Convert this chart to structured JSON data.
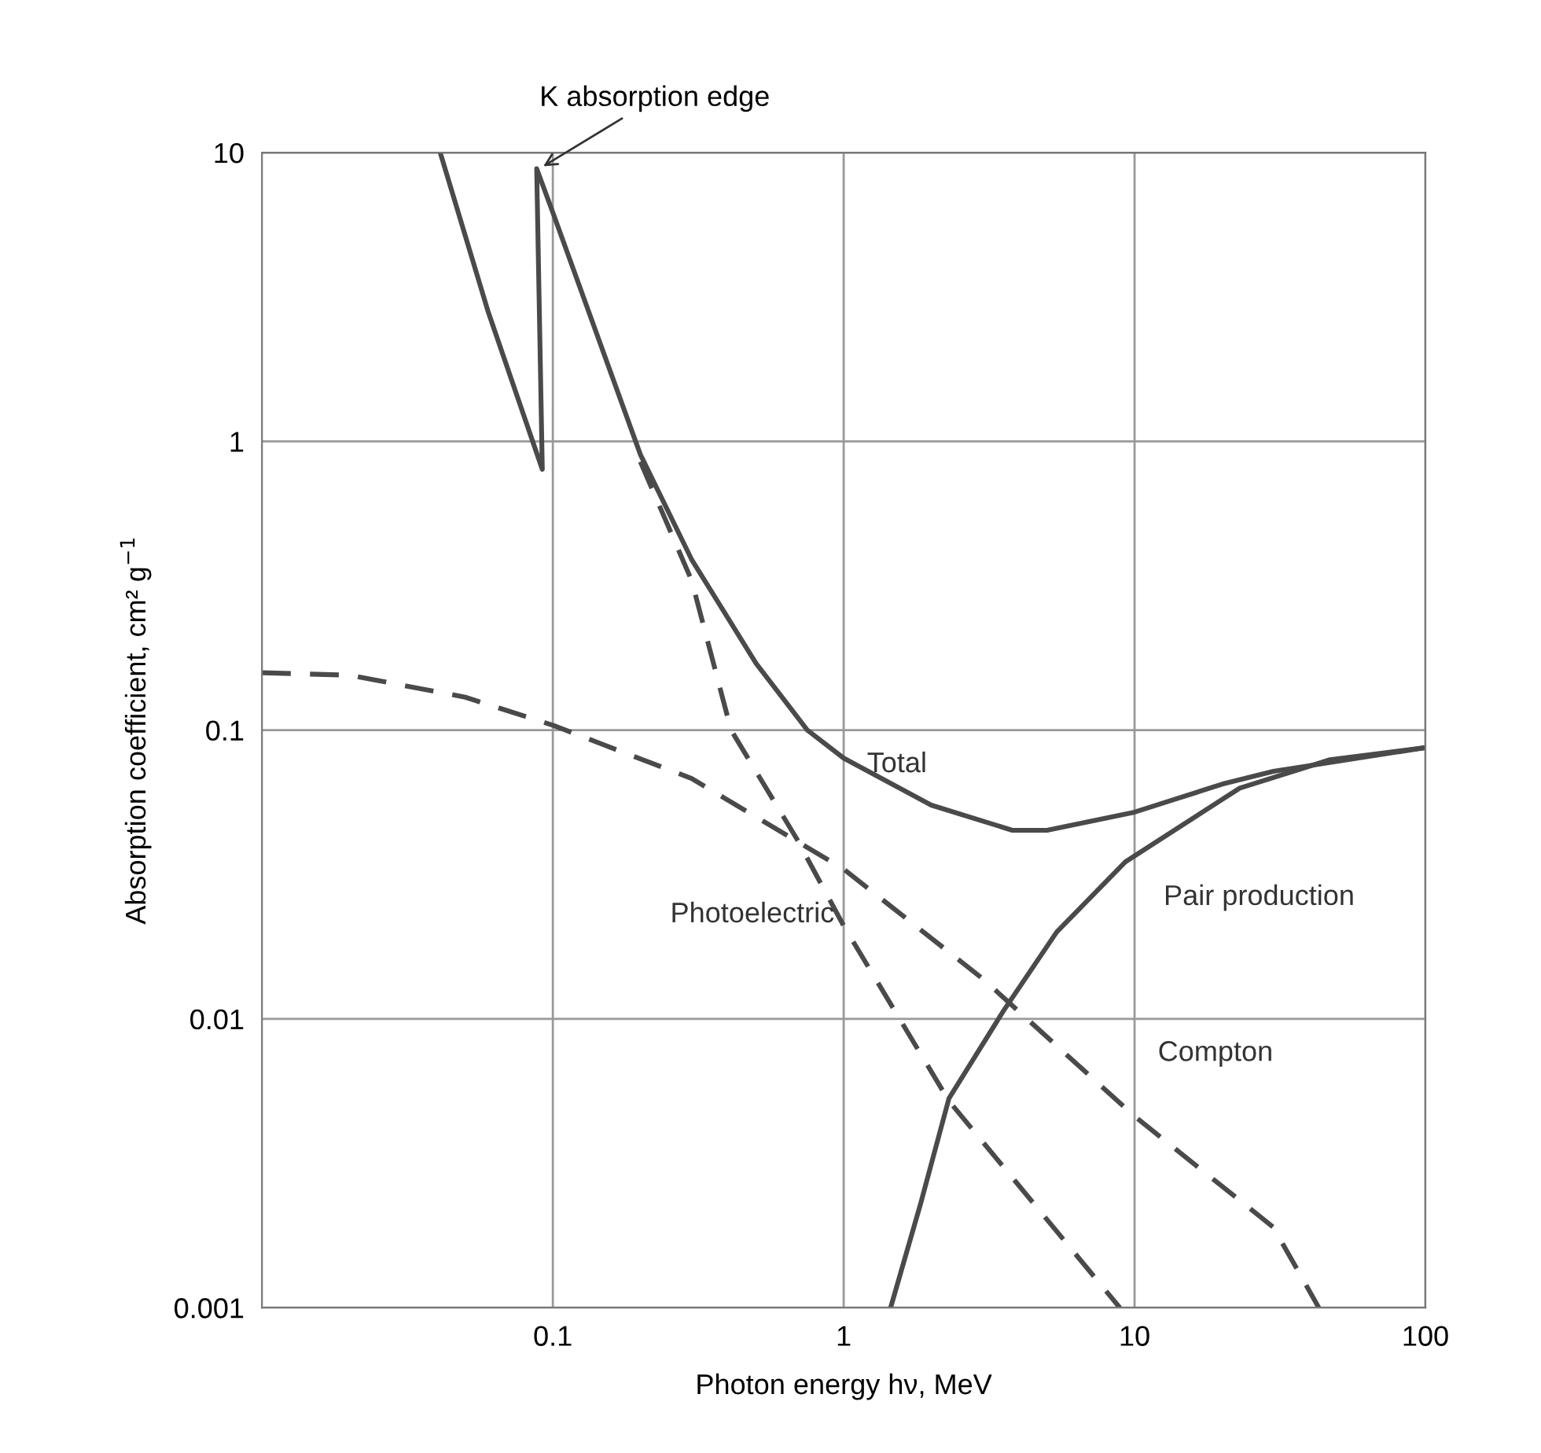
{
  "chart_data": {
    "type": "line",
    "xlabel": "Photon energy hν, MeV",
    "ylabel": "Absorption coefficient, cm² g$^{−1}$",
    "log": "xy",
    "xlim": [
      0.01,
      100
    ],
    "ylim": [
      0.001,
      10
    ],
    "xticks": [
      0.1,
      1,
      10,
      100
    ],
    "yticks": [
      0.001,
      0.01,
      0.1,
      1,
      10
    ],
    "grid": true,
    "legend": false,
    "marker": "none",
    "annotations": [
      {
        "text": "K absorption edge",
        "x": 0.09,
        "y": 8.8
      }
    ],
    "series": [
      {
        "name": "Total",
        "color": "#4a4a4a",
        "line_style": "solid",
        "x": [
          0.041,
          0.06,
          0.092,
          0.088,
          0.1,
          0.2,
          0.3,
          0.5,
          0.75,
          1,
          2,
          3.8,
          5,
          10,
          20,
          30,
          100
        ],
        "values": [
          10,
          2.8,
          0.8,
          8.8,
          6.2,
          0.9,
          0.39,
          0.17,
          0.1,
          0.08,
          0.055,
          0.045,
          0.045,
          0.052,
          0.065,
          0.072,
          0.087
        ]
      },
      {
        "name": "Photoelectric",
        "color": "#4a4a4a",
        "line_style": "dashed",
        "x": [
          0.2,
          0.3,
          0.41,
          0.69,
          1,
          2.3,
          8.9
        ],
        "values": [
          0.85,
          0.33,
          0.1,
          0.042,
          0.021,
          0.0052,
          0.001
        ]
      },
      {
        "name": "Compton",
        "color": "#4a4a4a",
        "line_style": "dashed",
        "x": [
          0.01,
          0.02,
          0.05,
          0.1,
          0.3,
          1,
          3,
          10,
          30,
          43
        ],
        "values": [
          0.158,
          0.155,
          0.13,
          0.104,
          0.068,
          0.033,
          0.0138,
          0.0046,
          0.0019,
          0.001
        ]
      },
      {
        "name": "Pair production",
        "color": "#4a4a4a",
        "line_style": "solid",
        "x": [
          1.45,
          1.84,
          2.3,
          3.55,
          5.4,
          9.3,
          23,
          47,
          100
        ],
        "values": [
          0.001,
          0.0023,
          0.0053,
          0.0107,
          0.02,
          0.035,
          0.063,
          0.079,
          0.087
        ]
      }
    ]
  }
}
